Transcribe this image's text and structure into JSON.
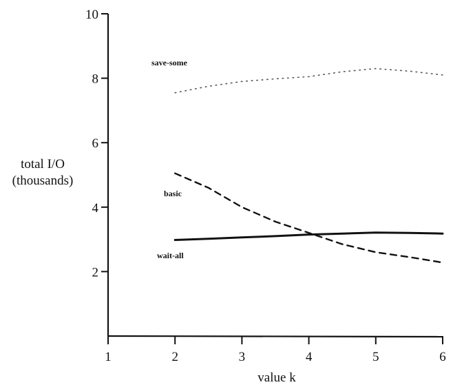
{
  "chart_data": {
    "type": "line",
    "ylabel_line1": "total I/O",
    "ylabel_line2": "(thousands)",
    "xlabel": "value k",
    "xlim": [
      1,
      6
    ],
    "ylim": [
      0,
      10
    ],
    "x_ticks": [
      "1",
      "2",
      "3",
      "4",
      "5",
      "6"
    ],
    "y_ticks": [
      "2",
      "4",
      "6",
      "8",
      "10"
    ],
    "grid": false,
    "legend": "inline labels",
    "series": [
      {
        "name": "save-some",
        "style": "dotted",
        "color": "#555555",
        "x": [
          2,
          2.5,
          3,
          3.5,
          4,
          4.5,
          5,
          5.5,
          6
        ],
        "y": [
          7.55,
          7.75,
          7.9,
          7.98,
          8.05,
          8.2,
          8.3,
          8.22,
          8.1
        ]
      },
      {
        "name": "basic",
        "style": "dashed",
        "color": "#111111",
        "x": [
          2,
          2.5,
          3,
          3.5,
          4,
          4.5,
          5,
          5.5,
          6
        ],
        "y": [
          5.05,
          4.6,
          4.0,
          3.55,
          3.2,
          2.85,
          2.6,
          2.45,
          2.28
        ]
      },
      {
        "name": "wait-all",
        "style": "solid",
        "color": "#111111",
        "x": [
          2,
          2.5,
          3,
          3.5,
          4,
          4.5,
          5,
          5.5,
          6
        ],
        "y": [
          2.98,
          3.02,
          3.06,
          3.1,
          3.15,
          3.18,
          3.21,
          3.2,
          3.18
        ]
      }
    ]
  }
}
